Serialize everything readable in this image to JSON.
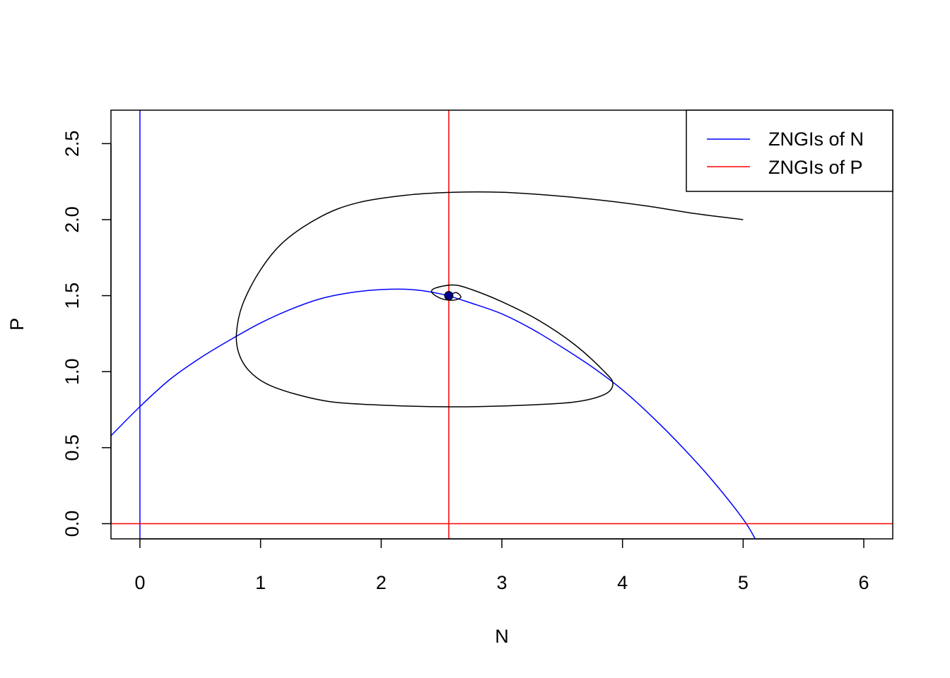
{
  "chart_data": {
    "type": "line",
    "xlabel": "N",
    "ylabel": "P",
    "xlim": [
      -0.24,
      6.24
    ],
    "ylim": [
      -0.1,
      2.72
    ],
    "x_ticks": [
      0,
      1,
      2,
      3,
      4,
      5,
      6
    ],
    "x_tick_labels": [
      "0",
      "1",
      "2",
      "3",
      "4",
      "5",
      "6"
    ],
    "y_ticks": [
      0.0,
      0.5,
      1.0,
      1.5,
      2.0,
      2.5
    ],
    "y_tick_labels": [
      "0.0",
      "0.5",
      "1.0",
      "1.5",
      "2.0",
      "2.5"
    ],
    "grid": false,
    "legend": {
      "position": "top-right",
      "entries": [
        {
          "label": "ZNGIs of N",
          "color": "#0000ff"
        },
        {
          "label": "ZNGIs of P",
          "color": "#ff0000"
        }
      ]
    },
    "colors": {
      "n_zngi": "#0000ff",
      "p_zngi": "#ff0000",
      "trajectory": "#000000",
      "equilibrium": "#00008b"
    },
    "series": [
      {
        "name": "ZNGIs of N",
        "color": "#0000ff",
        "kind": "vline",
        "x": 0
      },
      {
        "name": "ZNGIs of N",
        "color": "#0000ff",
        "kind": "curve",
        "x": [
          -0.25,
          0.0,
          0.25,
          0.5,
          0.75,
          1.0,
          1.25,
          1.5,
          1.75,
          2.0,
          2.25,
          2.5,
          2.75,
          3.0,
          3.25,
          3.5,
          3.75,
          4.0,
          4.25,
          4.5,
          4.75,
          5.0,
          5.1
        ],
        "y": [
          0.57,
          0.77,
          0.95,
          1.09,
          1.21,
          1.32,
          1.41,
          1.48,
          1.52,
          1.54,
          1.54,
          1.51,
          1.45,
          1.38,
          1.28,
          1.16,
          1.03,
          0.88,
          0.7,
          0.5,
          0.28,
          0.03,
          -0.1
        ]
      },
      {
        "name": "ZNGIs of P",
        "color": "#ff0000",
        "kind": "vline",
        "x": 2.56
      },
      {
        "name": "ZNGIs of P",
        "color": "#ff0000",
        "kind": "hline",
        "y": 0
      },
      {
        "color": "#000000",
        "kind": "trajectory",
        "x": [
          5.0,
          4.6,
          4.2,
          3.8,
          3.4,
          3.0,
          2.6,
          2.2,
          1.8,
          1.5,
          1.2,
          1.0,
          0.85,
          0.8,
          0.82,
          0.9,
          1.05,
          1.3,
          1.6,
          2.0,
          2.4,
          2.8,
          3.2,
          3.6,
          3.85,
          3.92,
          3.85,
          3.6,
          3.3,
          3.0,
          2.75,
          2.6,
          2.45,
          2.42,
          2.5,
          2.6,
          2.66,
          2.62,
          2.56
        ],
        "y": [
          2.0,
          2.04,
          2.09,
          2.13,
          2.16,
          2.18,
          2.18,
          2.16,
          2.11,
          2.02,
          1.86,
          1.67,
          1.44,
          1.25,
          1.12,
          1.01,
          0.92,
          0.85,
          0.8,
          0.78,
          0.77,
          0.77,
          0.78,
          0.8,
          0.85,
          0.92,
          1.0,
          1.18,
          1.34,
          1.46,
          1.54,
          1.57,
          1.55,
          1.52,
          1.48,
          1.47,
          1.49,
          1.52,
          1.5
        ]
      }
    ],
    "equilibrium_point": {
      "x": 2.56,
      "y": 1.5
    }
  }
}
